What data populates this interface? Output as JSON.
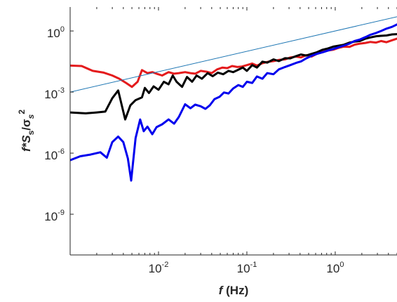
{
  "chart_data": {
    "type": "line",
    "title": "",
    "xscale": "log",
    "yscale": "log",
    "xlim": [
      0.001,
      5
    ],
    "ylim": [
      1e-11,
      15
    ],
    "grid": false,
    "legend": "none",
    "xlabel": {
      "var": "f",
      "rest": " (Hz)"
    },
    "ylabel": {
      "main": "f*S",
      "sub1": "s",
      "slash": "/σ",
      "sub2": "s",
      "sup": "2"
    },
    "xticks": [
      {
        "value": 0.01,
        "base": "10",
        "exp": "-2"
      },
      {
        "value": 0.1,
        "base": "10",
        "exp": "-1"
      },
      {
        "value": 1,
        "base": "10",
        "exp": "0"
      }
    ],
    "yticks": [
      {
        "value": 1e-09,
        "base": "10",
        "exp": "-9"
      },
      {
        "value": 1e-06,
        "base": "10",
        "exp": "-6"
      },
      {
        "value": 0.001,
        "base": "10",
        "exp": "-3"
      },
      {
        "value": 1,
        "base": "10",
        "exp": "0"
      }
    ],
    "series": [
      {
        "color": "#e41a1c",
        "width": 3,
        "points": [
          [
            0.001,
            0.02
          ],
          [
            0.00135,
            0.019
          ],
          [
            0.0018,
            0.011
          ],
          [
            0.0024,
            0.009
          ],
          [
            0.003,
            0.0065
          ],
          [
            0.0036,
            0.0045
          ],
          [
            0.0043,
            0.0028
          ],
          [
            0.005,
            0.0018
          ],
          [
            0.0058,
            0.0032
          ],
          [
            0.0065,
            0.012
          ],
          [
            0.0075,
            0.0085
          ],
          [
            0.0085,
            0.0095
          ],
          [
            0.0095,
            0.008
          ],
          [
            0.011,
            0.0065
          ],
          [
            0.013,
            0.0095
          ],
          [
            0.015,
            0.008
          ],
          [
            0.017,
            0.0085
          ],
          [
            0.02,
            0.0095
          ],
          [
            0.023,
            0.0085
          ],
          [
            0.026,
            0.008
          ],
          [
            0.03,
            0.011
          ],
          [
            0.035,
            0.01
          ],
          [
            0.04,
            0.0085
          ],
          [
            0.046,
            0.013
          ],
          [
            0.053,
            0.016
          ],
          [
            0.06,
            0.015
          ],
          [
            0.068,
            0.019
          ],
          [
            0.078,
            0.017
          ],
          [
            0.088,
            0.018
          ],
          [
            0.1,
            0.021
          ],
          [
            0.115,
            0.025
          ],
          [
            0.13,
            0.02
          ],
          [
            0.15,
            0.026
          ],
          [
            0.17,
            0.03
          ],
          [
            0.2,
            0.033
          ],
          [
            0.23,
            0.038
          ],
          [
            0.27,
            0.04
          ],
          [
            0.31,
            0.05
          ],
          [
            0.36,
            0.055
          ],
          [
            0.41,
            0.05
          ],
          [
            0.47,
            0.065
          ],
          [
            0.54,
            0.055
          ],
          [
            0.62,
            0.075
          ],
          [
            0.72,
            0.095
          ],
          [
            0.83,
            0.11
          ],
          [
            0.95,
            0.12
          ],
          [
            1.1,
            0.15
          ],
          [
            1.25,
            0.17
          ],
          [
            1.45,
            0.165
          ],
          [
            1.65,
            0.21
          ],
          [
            1.9,
            0.24
          ],
          [
            2.2,
            0.26
          ],
          [
            2.5,
            0.29
          ],
          [
            2.9,
            0.27
          ],
          [
            3.3,
            0.32
          ],
          [
            3.8,
            0.28
          ],
          [
            4.4,
            0.35
          ],
          [
            5,
            0.42
          ]
        ]
      },
      {
        "color": "#000000",
        "width": 3,
        "points": [
          [
            0.001,
            0.0001
          ],
          [
            0.0015,
            9e-05
          ],
          [
            0.002,
            0.0001
          ],
          [
            0.0025,
            0.00011
          ],
          [
            0.003,
            0.0005
          ],
          [
            0.0035,
            0.0012
          ],
          [
            0.0042,
            4.5e-05
          ],
          [
            0.0048,
            0.00022
          ],
          [
            0.0055,
            0.0004
          ],
          [
            0.0065,
            0.00055
          ],
          [
            0.007,
            0.0016
          ],
          [
            0.0078,
            0.0009
          ],
          [
            0.0088,
            0.0019
          ],
          [
            0.01,
            0.0013
          ],
          [
            0.0115,
            0.0032
          ],
          [
            0.013,
            0.0024
          ],
          [
            0.0145,
            0.0065
          ],
          [
            0.016,
            0.0032
          ],
          [
            0.0185,
            0.0018
          ],
          [
            0.021,
            0.0055
          ],
          [
            0.024,
            0.0032
          ],
          [
            0.027,
            0.0065
          ],
          [
            0.031,
            0.0045
          ],
          [
            0.036,
            0.0085
          ],
          [
            0.041,
            0.006
          ],
          [
            0.047,
            0.009
          ],
          [
            0.054,
            0.0075
          ],
          [
            0.062,
            0.011
          ],
          [
            0.07,
            0.0095
          ],
          [
            0.08,
            0.0125
          ],
          [
            0.09,
            0.016
          ],
          [
            0.1,
            0.011
          ],
          [
            0.115,
            0.021
          ],
          [
            0.13,
            0.016
          ],
          [
            0.15,
            0.031
          ],
          [
            0.17,
            0.028
          ],
          [
            0.2,
            0.04
          ],
          [
            0.23,
            0.033
          ],
          [
            0.27,
            0.046
          ],
          [
            0.31,
            0.045
          ],
          [
            0.36,
            0.058
          ],
          [
            0.41,
            0.07
          ],
          [
            0.47,
            0.062
          ],
          [
            0.54,
            0.075
          ],
          [
            0.62,
            0.09
          ],
          [
            0.72,
            0.12
          ],
          [
            0.83,
            0.14
          ],
          [
            0.95,
            0.17
          ],
          [
            1.1,
            0.19
          ],
          [
            1.25,
            0.21
          ],
          [
            1.45,
            0.27
          ],
          [
            1.65,
            0.3
          ],
          [
            1.9,
            0.32
          ],
          [
            2.2,
            0.42
          ],
          [
            2.5,
            0.48
          ],
          [
            2.9,
            0.55
          ],
          [
            3.3,
            0.58
          ],
          [
            3.8,
            0.6
          ],
          [
            4.4,
            0.68
          ],
          [
            5,
            0.7
          ]
        ]
      },
      {
        "color": "#0000ee",
        "width": 3,
        "points": [
          [
            0.001,
            4.5e-07
          ],
          [
            0.0013,
            7e-07
          ],
          [
            0.0017,
            8.5e-07
          ],
          [
            0.0022,
            1.1e-06
          ],
          [
            0.0026,
            6e-07
          ],
          [
            0.003,
            3.5e-06
          ],
          [
            0.0035,
            6.5e-06
          ],
          [
            0.004,
            3.5e-06
          ],
          [
            0.0045,
            5.5e-07
          ],
          [
            0.0049,
            4.5e-08
          ],
          [
            0.0055,
            5.5e-06
          ],
          [
            0.0062,
            4.5e-05
          ],
          [
            0.0068,
            1.2e-05
          ],
          [
            0.0075,
            2e-05
          ],
          [
            0.0085,
            8.5e-06
          ],
          [
            0.0095,
            1.9e-05
          ],
          [
            0.011,
            2.6e-05
          ],
          [
            0.013,
            4.5e-05
          ],
          [
            0.015,
            2.8e-05
          ],
          [
            0.017,
            6e-05
          ],
          [
            0.02,
            0.00025
          ],
          [
            0.023,
            0.00016
          ],
          [
            0.026,
            0.00024
          ],
          [
            0.03,
            0.0002
          ],
          [
            0.034,
            0.00015
          ],
          [
            0.038,
            0.00022
          ],
          [
            0.043,
            0.00045
          ],
          [
            0.049,
            0.00058
          ],
          [
            0.055,
            0.00095
          ],
          [
            0.062,
            0.00085
          ],
          [
            0.07,
            0.0015
          ],
          [
            0.08,
            0.0022
          ],
          [
            0.09,
            0.0018
          ],
          [
            0.1,
            0.0032
          ],
          [
            0.115,
            0.0028
          ],
          [
            0.13,
            0.0058
          ],
          [
            0.15,
            0.0045
          ],
          [
            0.17,
            0.0085
          ],
          [
            0.2,
            0.0075
          ],
          [
            0.23,
            0.013
          ],
          [
            0.27,
            0.017
          ],
          [
            0.31,
            0.021
          ],
          [
            0.36,
            0.027
          ],
          [
            0.41,
            0.032
          ],
          [
            0.47,
            0.045
          ],
          [
            0.54,
            0.06
          ],
          [
            0.62,
            0.075
          ],
          [
            0.72,
            0.09
          ],
          [
            0.83,
            0.11
          ],
          [
            0.95,
            0.13
          ],
          [
            1.1,
            0.16
          ],
          [
            1.25,
            0.19
          ],
          [
            1.45,
            0.24
          ],
          [
            1.65,
            0.32
          ],
          [
            1.9,
            0.38
          ],
          [
            2.2,
            0.5
          ],
          [
            2.5,
            0.65
          ],
          [
            2.9,
            0.8
          ],
          [
            3.3,
            1
          ],
          [
            3.8,
            1.3
          ],
          [
            4.4,
            1.6
          ],
          [
            5,
            2.1
          ]
        ]
      },
      {
        "color": "#1f77b4",
        "width": 1,
        "points": [
          [
            0.001,
            0.001
          ],
          [
            5,
            5
          ]
        ]
      }
    ]
  }
}
